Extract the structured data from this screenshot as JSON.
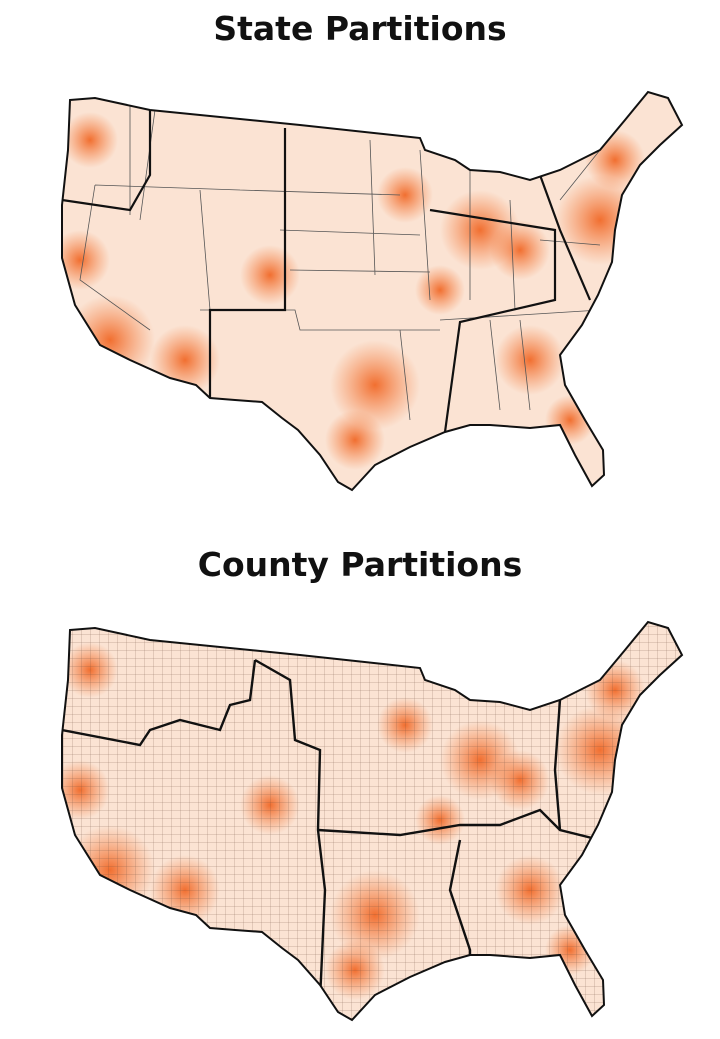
{
  "maps": [
    {
      "title": "State Partitions"
    },
    {
      "title": "County Partitions"
    }
  ]
}
